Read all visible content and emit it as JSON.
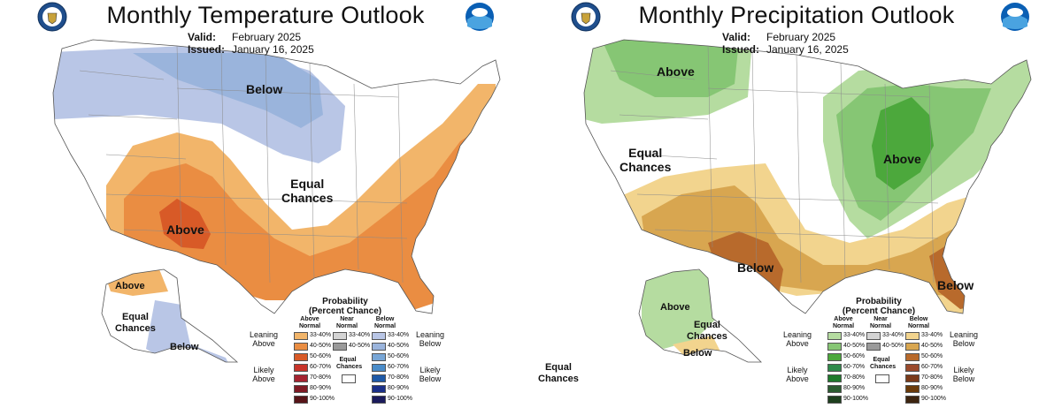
{
  "temperature": {
    "title": "Monthly Temperature Outlook",
    "valid_label": "Valid:",
    "valid_value": "February 2025",
    "issued_label": "Issued:",
    "issued_value": "January 16, 2025",
    "map_labels": {
      "below": "Below",
      "equal_line1": "Equal",
      "equal_line2": "Chances",
      "above": "Above",
      "ak_above": "Above",
      "ak_equal_line1": "Equal",
      "ak_equal_line2": "Chances",
      "ak_below": "Below"
    },
    "legend": {
      "title_line1": "Probability",
      "title_line2": "(Percent Chance)",
      "col_above": "Above Normal",
      "col_near": "Near Normal",
      "col_below": "Below Normal",
      "leaning_above": "Leaning Above",
      "likely_above": "Likely Above",
      "leaning_below": "Leaning Below",
      "likely_below": "Likely Below",
      "equal_chances": "Equal Chances",
      "above_colors": [
        "#f2b56a",
        "#ea8d42",
        "#d85a27",
        "#c8342a",
        "#a52330",
        "#7e1a24",
        "#571418"
      ],
      "near_colors": [
        "#d4d4d4",
        "#9a9a9a"
      ],
      "below_colors": [
        "#b9c6e6",
        "#9ab4dc",
        "#78a6d6",
        "#4a8cc9",
        "#1e5aa8",
        "#1a2f88",
        "#1b1b5c"
      ],
      "ranges": [
        "33-40%",
        "40-50%",
        "50-60%",
        "60-70%",
        "70-80%",
        "80-90%",
        "90-100%"
      ]
    }
  },
  "precipitation": {
    "title": "Monthly Precipitation Outlook",
    "valid_label": "Valid:",
    "valid_value": "February 2025",
    "issued_label": "Issued:",
    "issued_value": "January 16, 2025",
    "map_labels": {
      "above_nw": "Above",
      "equal_line1": "Equal",
      "equal_line2": "Chances",
      "above_ne": "Above",
      "below_sw": "Below",
      "below_se": "Below",
      "ak_above": "Above",
      "ak_equal_line1": "Equal",
      "ak_equal_line2": "Chances",
      "ak_below": "Below",
      "hi_equal_line1": "Equal",
      "hi_equal_line2": "Chances"
    },
    "legend": {
      "title_line1": "Probability",
      "title_line2": "(Percent Chance)",
      "col_above": "Above Normal",
      "col_near": "Near Normal",
      "col_below": "Below Normal",
      "leaning_above": "Leaning Above",
      "likely_above": "Likely Above",
      "leaning_below": "Leaning Below",
      "likely_below": "Likely Below",
      "equal_chances": "Equal Chances",
      "above_colors": [
        "#b5dca0",
        "#86c674",
        "#4ca83c",
        "#2f8a4a",
        "#1f7a2c",
        "#2b5c30",
        "#1e3f1e"
      ],
      "near_colors": [
        "#d4d4d4",
        "#9a9a9a"
      ],
      "below_colors": [
        "#f2d48e",
        "#d8a650",
        "#b86a2c",
        "#9a4a2c",
        "#7a3a1a",
        "#6a3a0a",
        "#3d2510"
      ],
      "ranges": [
        "33-40%",
        "40-50%",
        "50-60%",
        "60-70%",
        "70-80%",
        "80-90%",
        "90-100%"
      ]
    }
  }
}
